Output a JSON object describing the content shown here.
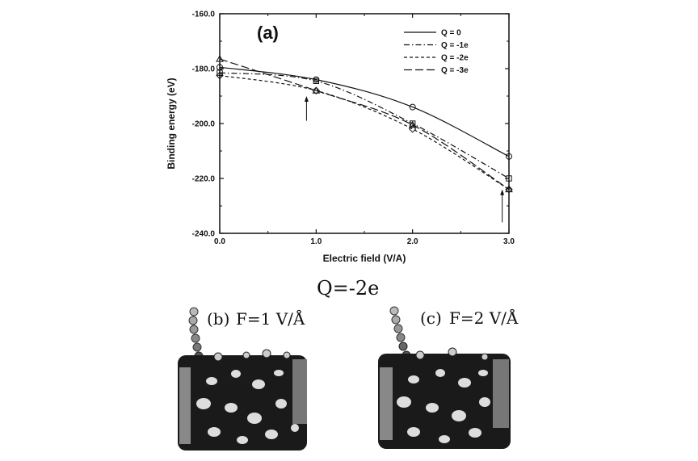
{
  "chart_data": {
    "type": "line",
    "panel_label": "(a)",
    "xlabel": "Electric field (V/A)",
    "ylabel": "Binding energy (eV)",
    "xlim": [
      0.0,
      3.0
    ],
    "ylim": [
      -240.0,
      -160.0
    ],
    "x_ticks": [
      "0.0",
      "1.0",
      "2.0",
      "3.0"
    ],
    "y_ticks": [
      "-160.0",
      "-180.0",
      "-200.0",
      "-220.0",
      "-240.0"
    ],
    "x_tick_values": [
      0,
      1,
      2,
      3
    ],
    "y_tick_values": [
      -160,
      -180,
      -200,
      -220,
      -240
    ],
    "grid": false,
    "legend_position": "top-right",
    "x": [
      0,
      1,
      2,
      3
    ],
    "series": [
      {
        "name": "Q = 0",
        "values": [
          -179.5,
          -184.0,
          -194.0,
          -212.0
        ],
        "line": "solid",
        "marker": "circle"
      },
      {
        "name": "Q = -1e",
        "values": [
          -181.5,
          -184.5,
          -200.0,
          -220.0
        ],
        "line": "dash-dot",
        "marker": "square"
      },
      {
        "name": "Q = -2e",
        "values": [
          -182.5,
          -188.0,
          -202.0,
          -224.0
        ],
        "line": "dashed",
        "marker": "diamond"
      },
      {
        "name": "Q = -3e",
        "values": [
          -176.5,
          -188.0,
          -200.5,
          -224.0
        ],
        "line": "long-dash",
        "marker": "triangle"
      }
    ],
    "annotations": [
      {
        "type": "arrow",
        "x": 0.9,
        "y_from": -199.0,
        "y_to": -190.0
      },
      {
        "type": "arrow",
        "x": 2.93,
        "y_from": -236.0,
        "y_to": -224.0
      }
    ]
  },
  "lower_caption": "Q=-2e",
  "panel_b_label": "(b)",
  "panel_b_field": "F=1 V/Å",
  "panel_c_label": "(c)",
  "panel_c_field": "F=2 V/Å"
}
